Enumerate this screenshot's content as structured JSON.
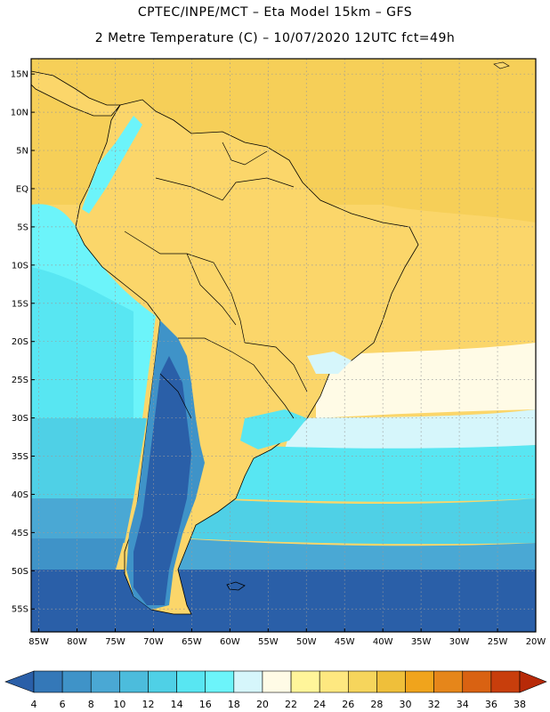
{
  "header": {
    "line1": "CPTEC/INPE/MCT –  Eta Model 15km – GFS",
    "line2": "2 Metre Temperature (C) – 10/07/2020 12UTC fct=49h"
  },
  "map": {
    "lat_labels": [
      "15N",
      "10N",
      "5N",
      "EQ",
      "5S",
      "10S",
      "15S",
      "20S",
      "25S",
      "30S",
      "35S",
      "40S",
      "45S",
      "50S",
      "55S"
    ],
    "lon_labels": [
      "85W",
      "80W",
      "75W",
      "70W",
      "65W",
      "60W",
      "55W",
      "50W",
      "45W",
      "40W",
      "35W",
      "30W",
      "25W",
      "20W"
    ],
    "lat_range": [
      -58,
      17
    ],
    "lon_range": [
      -86,
      -20
    ]
  },
  "colorbar": {
    "labels": [
      "4",
      "6",
      "8",
      "10",
      "12",
      "14",
      "16",
      "18",
      "20",
      "22",
      "24",
      "26",
      "28",
      "30",
      "32",
      "34",
      "36",
      "38"
    ],
    "colors": [
      "#2a5fa8",
      "#3478b8",
      "#3f93c8",
      "#4aa8d4",
      "#4cbcdc",
      "#4fd0e6",
      "#58e6f2",
      "#6cf4fa",
      "#d6f6fb",
      "#fffbe6",
      "#fff59a",
      "#fee880",
      "#f6d55c",
      "#efbf3a",
      "#f0a41c",
      "#e6861a",
      "#d96212",
      "#c83e0c",
      "#b82a08"
    ]
  }
}
